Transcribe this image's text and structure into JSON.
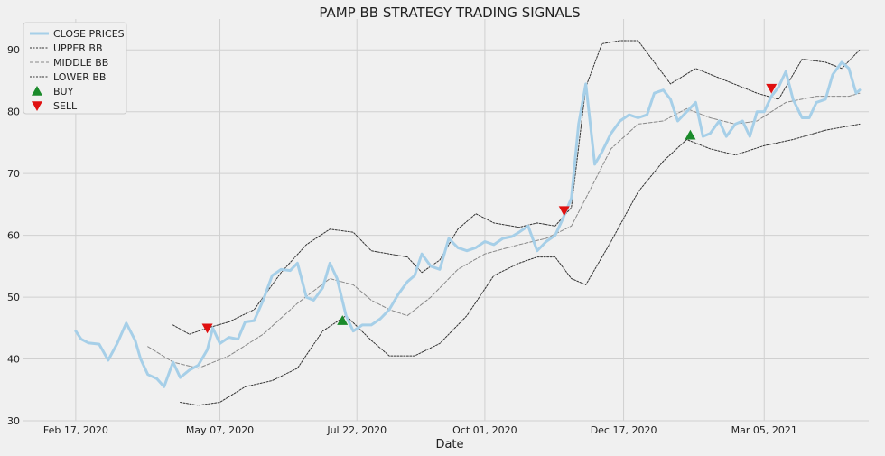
{
  "chart_data": {
    "type": "line",
    "title": "PAMP BB STRATEGY TRADING SIGNALS",
    "xlabel": "Date",
    "ylabel": "",
    "x_ticks": [
      "Feb 17, 2020",
      "May 07, 2020",
      "Jul 22, 2020",
      "Oct 01, 2020",
      "Dec 17, 2020",
      "Mar 05, 2021"
    ],
    "x_tick_dates": [
      "2020-02-17",
      "2020-05-07",
      "2020-07-22",
      "2020-10-01",
      "2020-12-17",
      "2021-03-05"
    ],
    "xlim": [
      "2020-01-19",
      "2021-05-02"
    ],
    "ylim": [
      30,
      95
    ],
    "y_ticks": [
      30,
      40,
      50,
      60,
      70,
      80,
      90
    ],
    "grid": true,
    "legend": "top-left",
    "series": [
      {
        "name": "CLOSE PRICES",
        "color": "#a6cfe8",
        "style": "solid",
        "points": [
          [
            "2020-02-17",
            44.5
          ],
          [
            "2020-02-20",
            43.2
          ],
          [
            "2020-02-24",
            42.6
          ],
          [
            "2020-03-01",
            42.4
          ],
          [
            "2020-03-06",
            39.8
          ],
          [
            "2020-03-11",
            42.5
          ],
          [
            "2020-03-16",
            45.8
          ],
          [
            "2020-03-21",
            43.0
          ],
          [
            "2020-03-24",
            40.0
          ],
          [
            "2020-03-28",
            37.5
          ],
          [
            "2020-04-02",
            36.8
          ],
          [
            "2020-04-06",
            35.5
          ],
          [
            "2020-04-11",
            39.5
          ],
          [
            "2020-04-15",
            37.0
          ],
          [
            "2020-04-20",
            38.2
          ],
          [
            "2020-04-25",
            39.0
          ],
          [
            "2020-04-30",
            41.5
          ],
          [
            "2020-05-03",
            45.0
          ],
          [
            "2020-05-07",
            42.5
          ],
          [
            "2020-05-12",
            43.5
          ],
          [
            "2020-05-17",
            43.2
          ],
          [
            "2020-05-21",
            46.0
          ],
          [
            "2020-05-26",
            46.2
          ],
          [
            "2020-05-31",
            49.5
          ],
          [
            "2020-06-05",
            53.5
          ],
          [
            "2020-06-10",
            54.5
          ],
          [
            "2020-06-15",
            54.3
          ],
          [
            "2020-06-19",
            55.5
          ],
          [
            "2020-06-24",
            50.0
          ],
          [
            "2020-06-28",
            49.5
          ],
          [
            "2020-07-03",
            51.5
          ],
          [
            "2020-07-07",
            55.5
          ],
          [
            "2020-07-11",
            53.0
          ],
          [
            "2020-07-16",
            47.0
          ],
          [
            "2020-07-20",
            44.5
          ],
          [
            "2020-07-25",
            45.5
          ],
          [
            "2020-07-30",
            45.5
          ],
          [
            "2020-08-04",
            46.5
          ],
          [
            "2020-08-09",
            48.0
          ],
          [
            "2020-08-14",
            50.5
          ],
          [
            "2020-08-19",
            52.5
          ],
          [
            "2020-08-23",
            53.5
          ],
          [
            "2020-08-27",
            57.0
          ],
          [
            "2020-09-01",
            55.0
          ],
          [
            "2020-09-06",
            54.5
          ],
          [
            "2020-09-11",
            59.5
          ],
          [
            "2020-09-16",
            58.0
          ],
          [
            "2020-09-21",
            57.5
          ],
          [
            "2020-09-26",
            58.0
          ],
          [
            "2020-10-01",
            59.0
          ],
          [
            "2020-10-06",
            58.5
          ],
          [
            "2020-10-11",
            59.5
          ],
          [
            "2020-10-16",
            59.8
          ],
          [
            "2020-10-20",
            60.5
          ],
          [
            "2020-10-25",
            61.5
          ],
          [
            "2020-10-30",
            57.5
          ],
          [
            "2020-11-04",
            59.0
          ],
          [
            "2020-11-09",
            60.0
          ],
          [
            "2020-11-13",
            62.5
          ],
          [
            "2020-11-18",
            66.0
          ],
          [
            "2020-11-22",
            78.0
          ],
          [
            "2020-11-26",
            84.5
          ],
          [
            "2020-12-01",
            71.5
          ],
          [
            "2020-12-05",
            73.5
          ],
          [
            "2020-12-10",
            76.5
          ],
          [
            "2020-12-15",
            78.5
          ],
          [
            "2020-12-20",
            79.5
          ],
          [
            "2020-12-25",
            79.0
          ],
          [
            "2020-12-30",
            79.5
          ],
          [
            "2021-01-03",
            83.0
          ],
          [
            "2021-01-08",
            83.5
          ],
          [
            "2021-01-12",
            82.0
          ],
          [
            "2021-01-16",
            78.5
          ],
          [
            "2021-01-21",
            80.0
          ],
          [
            "2021-01-26",
            81.5
          ],
          [
            "2021-01-30",
            76.0
          ],
          [
            "2021-02-03",
            76.5
          ],
          [
            "2021-02-08",
            78.5
          ],
          [
            "2021-02-12",
            76.0
          ],
          [
            "2021-02-17",
            78.0
          ],
          [
            "2021-02-21",
            78.5
          ],
          [
            "2021-02-25",
            76.0
          ],
          [
            "2021-03-01",
            80.0
          ],
          [
            "2021-03-05",
            80.0
          ],
          [
            "2021-03-09",
            82.5
          ],
          [
            "2021-03-13",
            84.0
          ],
          [
            "2021-03-17",
            86.5
          ],
          [
            "2021-03-21",
            82.0
          ],
          [
            "2021-03-26",
            79.0
          ],
          [
            "2021-03-30",
            79.0
          ],
          [
            "2021-04-03",
            81.5
          ],
          [
            "2021-04-08",
            82.0
          ],
          [
            "2021-04-12",
            86.0
          ],
          [
            "2021-04-17",
            88.0
          ],
          [
            "2021-04-21",
            87.0
          ],
          [
            "2021-04-25",
            83.0
          ],
          [
            "2021-04-27",
            83.5
          ]
        ]
      },
      {
        "name": "UPPER BB",
        "color": "#333333",
        "style": "dotted",
        "points": [
          [
            "2020-04-11",
            45.5
          ],
          [
            "2020-04-20",
            44.0
          ],
          [
            "2020-04-30",
            45.0
          ],
          [
            "2020-05-12",
            46.0
          ],
          [
            "2020-05-26",
            48.0
          ],
          [
            "2020-06-10",
            54.0
          ],
          [
            "2020-06-24",
            58.5
          ],
          [
            "2020-07-07",
            61.0
          ],
          [
            "2020-07-20",
            60.5
          ],
          [
            "2020-07-30",
            57.5
          ],
          [
            "2020-08-09",
            57.0
          ],
          [
            "2020-08-19",
            56.5
          ],
          [
            "2020-08-27",
            54.0
          ],
          [
            "2020-09-06",
            56.0
          ],
          [
            "2020-09-16",
            61.0
          ],
          [
            "2020-09-26",
            63.5
          ],
          [
            "2020-10-06",
            62.0
          ],
          [
            "2020-10-20",
            61.3
          ],
          [
            "2020-10-30",
            62.0
          ],
          [
            "2020-11-09",
            61.5
          ],
          [
            "2020-11-18",
            64.5
          ],
          [
            "2020-11-26",
            84.0
          ],
          [
            "2020-12-05",
            91.0
          ],
          [
            "2020-12-15",
            91.5
          ],
          [
            "2020-12-25",
            91.5
          ],
          [
            "2021-01-03",
            88.0
          ],
          [
            "2021-01-12",
            84.5
          ],
          [
            "2021-01-26",
            87.0
          ],
          [
            "2021-02-12",
            85.0
          ],
          [
            "2021-03-01",
            83.0
          ],
          [
            "2021-03-13",
            82.0
          ],
          [
            "2021-03-26",
            88.5
          ],
          [
            "2021-04-08",
            88.0
          ],
          [
            "2021-04-17",
            87.0
          ],
          [
            "2021-04-27",
            90.0
          ]
        ]
      },
      {
        "name": "MIDDLE BB",
        "color": "#888888",
        "style": "dashed",
        "points": [
          [
            "2020-03-28",
            42.0
          ],
          [
            "2020-04-11",
            39.5
          ],
          [
            "2020-04-25",
            38.5
          ],
          [
            "2020-05-12",
            40.5
          ],
          [
            "2020-05-31",
            44.0
          ],
          [
            "2020-06-19",
            49.0
          ],
          [
            "2020-07-07",
            53.0
          ],
          [
            "2020-07-20",
            52.0
          ],
          [
            "2020-07-30",
            49.5
          ],
          [
            "2020-08-09",
            48.0
          ],
          [
            "2020-08-19",
            47.0
          ],
          [
            "2020-09-01",
            50.0
          ],
          [
            "2020-09-16",
            54.5
          ],
          [
            "2020-10-01",
            57.0
          ],
          [
            "2020-10-20",
            58.5
          ],
          [
            "2020-11-04",
            59.5
          ],
          [
            "2020-11-18",
            61.5
          ],
          [
            "2020-11-26",
            66.0
          ],
          [
            "2020-12-10",
            74.0
          ],
          [
            "2020-12-25",
            78.0
          ],
          [
            "2021-01-08",
            78.5
          ],
          [
            "2021-01-21",
            80.5
          ],
          [
            "2021-02-03",
            79.0
          ],
          [
            "2021-02-17",
            78.0
          ],
          [
            "2021-03-01",
            78.5
          ],
          [
            "2021-03-17",
            81.5
          ],
          [
            "2021-04-03",
            82.5
          ],
          [
            "2021-04-21",
            82.5
          ],
          [
            "2021-04-27",
            83.0
          ]
        ]
      },
      {
        "name": "LOWER BB",
        "color": "#333333",
        "style": "dotted",
        "points": [
          [
            "2020-04-15",
            33.0
          ],
          [
            "2020-04-25",
            32.5
          ],
          [
            "2020-05-07",
            33.0
          ],
          [
            "2020-05-21",
            35.5
          ],
          [
            "2020-06-05",
            36.5
          ],
          [
            "2020-06-19",
            38.5
          ],
          [
            "2020-07-03",
            44.5
          ],
          [
            "2020-07-16",
            47.0
          ],
          [
            "2020-07-30",
            43.0
          ],
          [
            "2020-08-09",
            40.5
          ],
          [
            "2020-08-23",
            40.5
          ],
          [
            "2020-09-06",
            42.5
          ],
          [
            "2020-09-21",
            47.0
          ],
          [
            "2020-10-06",
            53.5
          ],
          [
            "2020-10-20",
            55.5
          ],
          [
            "2020-10-30",
            56.5
          ],
          [
            "2020-11-09",
            56.5
          ],
          [
            "2020-11-18",
            53.0
          ],
          [
            "2020-11-26",
            52.0
          ],
          [
            "2020-12-10",
            59.0
          ],
          [
            "2020-12-25",
            67.0
          ],
          [
            "2021-01-08",
            72.0
          ],
          [
            "2021-01-21",
            75.5
          ],
          [
            "2021-02-03",
            74.0
          ],
          [
            "2021-02-17",
            73.0
          ],
          [
            "2021-03-05",
            74.5
          ],
          [
            "2021-03-21",
            75.5
          ],
          [
            "2021-04-08",
            77.0
          ],
          [
            "2021-04-27",
            78.0
          ]
        ]
      }
    ],
    "markers": [
      {
        "name": "BUY",
        "color": "#1a8a2a",
        "shape": "triangle-up",
        "points": [
          [
            "2020-07-14",
            46.2
          ],
          [
            "2021-01-23",
            76.2
          ]
        ]
      },
      {
        "name": "SELL",
        "color": "#e01010",
        "shape": "triangle-down",
        "points": [
          [
            "2020-04-30",
            45.0
          ],
          [
            "2020-11-14",
            64.0
          ],
          [
            "2021-03-09",
            83.8
          ]
        ]
      }
    ]
  }
}
